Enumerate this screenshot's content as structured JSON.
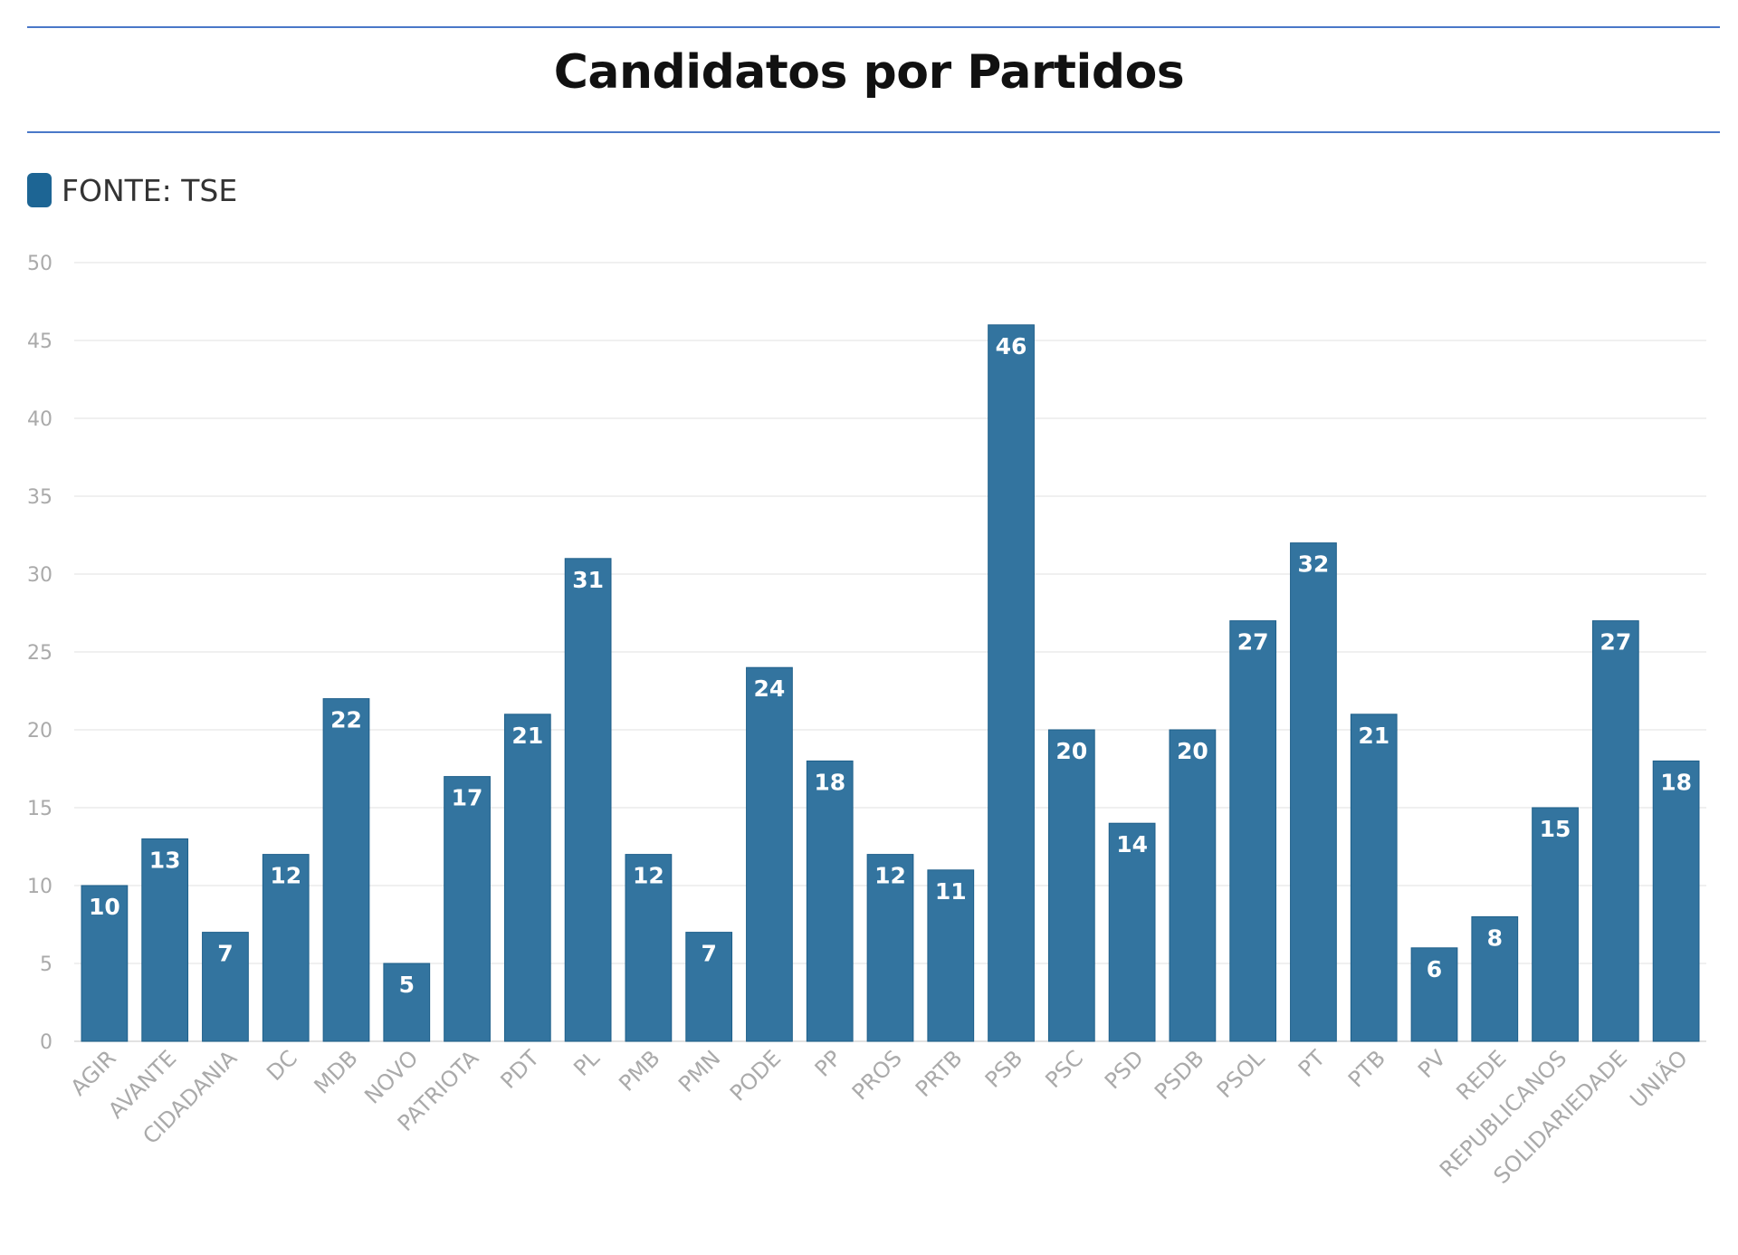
{
  "title": "Candidatos por Partidos",
  "legend": {
    "label": "FONTE: TSE",
    "color": "#1d6594"
  },
  "chart_data": {
    "type": "bar",
    "title": "Candidatos por Partidos",
    "xlabel": "",
    "ylabel": "",
    "ylim": [
      0,
      50
    ],
    "yticks": [
      0,
      5,
      10,
      15,
      20,
      25,
      30,
      35,
      40,
      45,
      50
    ],
    "grid": true,
    "legend_position": "top-left",
    "bar_color": "#33749f",
    "categories": [
      "AGIR",
      "AVANTE",
      "CIDADANIA",
      "DC",
      "MDB",
      "NOVO",
      "PATRIOTA",
      "PDT",
      "PL",
      "PMB",
      "PMN",
      "PODE",
      "PP",
      "PROS",
      "PRTB",
      "PSB",
      "PSC",
      "PSD",
      "PSDB",
      "PSOL",
      "PT",
      "PTB",
      "PV",
      "REDE",
      "REPUBLICANOS",
      "SOLIDARIEDADE",
      "UNIÃO"
    ],
    "series": [
      {
        "name": "FONTE: TSE",
        "values": [
          10,
          13,
          7,
          12,
          22,
          5,
          17,
          21,
          31,
          12,
          7,
          24,
          18,
          12,
          11,
          46,
          20,
          14,
          20,
          27,
          32,
          21,
          6,
          8,
          15,
          27,
          18
        ]
      }
    ]
  }
}
